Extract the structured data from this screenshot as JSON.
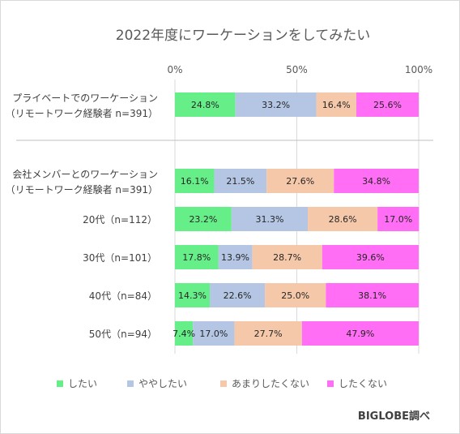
{
  "chart_data": {
    "type": "bar",
    "orientation": "horizontal",
    "stacked": true,
    "title": "2022年度にワーケーションをしてみたい",
    "xlim": [
      0,
      100
    ],
    "x_ticks": [
      "0%",
      "50%",
      "100%"
    ],
    "grid": true,
    "legend_position": "bottom",
    "source": "BIGLOBE調べ",
    "categories": [
      [
        "プライベートでのワーケーション",
        "（リモートワーク経験者 n=391）"
      ],
      [
        "会社メンバーとのワーケーション",
        "（リモートワーク経験者 n=391）"
      ],
      [
        "20代（n=112）"
      ],
      [
        "30代（n=101）"
      ],
      [
        "40代（n=84）"
      ],
      [
        "50代（n=94）"
      ]
    ],
    "series": [
      {
        "name": "したい",
        "color": "#66ee88",
        "values": [
          24.8,
          16.1,
          23.2,
          17.8,
          14.3,
          7.4
        ]
      },
      {
        "name": "ややしたい",
        "color": "#b4c6e4",
        "values": [
          33.2,
          21.5,
          31.3,
          13.9,
          22.6,
          17.0
        ]
      },
      {
        "name": "あまりしたくない",
        "color": "#f6c8aa",
        "values": [
          16.4,
          27.6,
          28.6,
          28.7,
          25.0,
          27.7
        ]
      },
      {
        "name": "したくない",
        "color": "#ff6ef5",
        "values": [
          25.6,
          34.8,
          17.0,
          39.6,
          38.1,
          47.9
        ]
      }
    ],
    "data_labels": [
      [
        "24.8%",
        "16.1%",
        "23.2%",
        "17.8%",
        "14.3%",
        "7.4%"
      ],
      [
        "33.2%",
        "21.5%",
        "31.3%",
        "13.9%",
        "22.6%",
        "17.0%"
      ],
      [
        "16.4%",
        "27.6%",
        "28.6%",
        "28.7%",
        "25.0%",
        "27.7%"
      ],
      [
        "25.6%",
        "34.8%",
        "17.0%",
        "39.6%",
        "38.1%",
        "47.9%"
      ]
    ]
  }
}
